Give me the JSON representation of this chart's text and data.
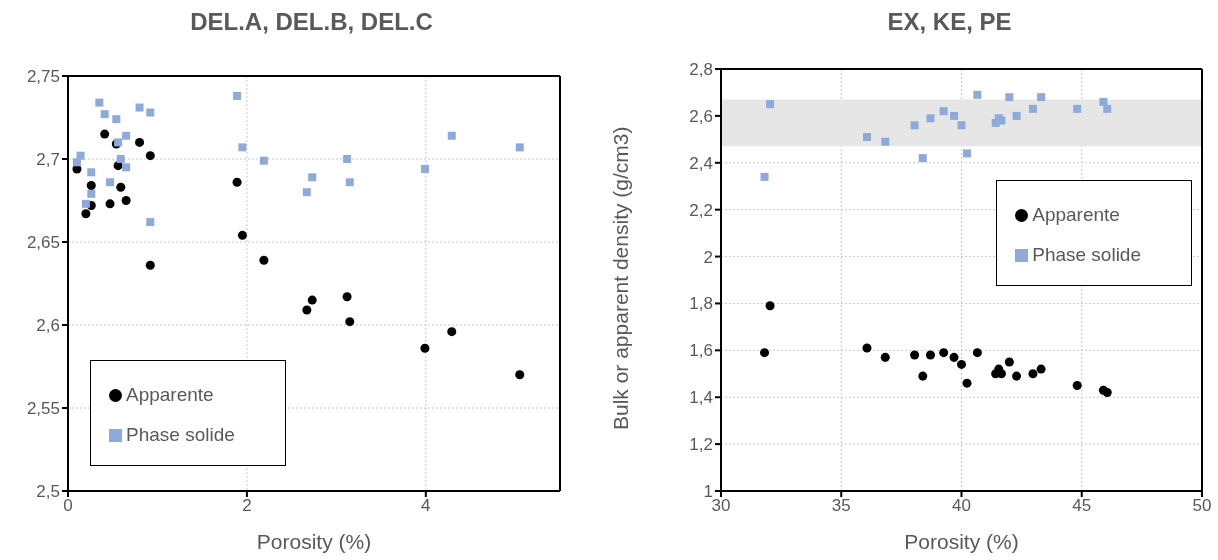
{
  "chart_data": [
    {
      "type": "scatter",
      "title": "DEL.A, DEL.B, DEL.C",
      "xlabel": "Porosity (%)",
      "xlim": [
        0,
        5.5
      ],
      "xticks": [
        0,
        2,
        4
      ],
      "ylim": [
        2.5,
        2.75
      ],
      "yticks": [
        {
          "value": 2.5,
          "label": "2,5"
        },
        {
          "value": 2.55,
          "label": "2,55"
        },
        {
          "value": 2.6,
          "label": "2,6"
        },
        {
          "value": 2.65,
          "label": "2,65"
        },
        {
          "value": 2.7,
          "label": "2,7"
        },
        {
          "value": 2.75,
          "label": "2,75"
        }
      ],
      "grid": true,
      "legend": "bottom left",
      "series": [
        {
          "name": "Apparente",
          "color": "#000000",
          "marker": "circle",
          "x": [
            0.1,
            0.2,
            0.26,
            0.26,
            0.41,
            0.47,
            0.54,
            0.56,
            0.59,
            0.65,
            0.8,
            0.92,
            0.92,
            1.89,
            1.95,
            2.19,
            2.67,
            2.73,
            3.12,
            3.15,
            3.99,
            4.29,
            5.05
          ],
          "values": [
            2.694,
            2.667,
            2.684,
            2.672,
            2.715,
            2.673,
            2.709,
            2.696,
            2.683,
            2.675,
            2.71,
            2.702,
            2.636,
            2.686,
            2.654,
            2.639,
            2.609,
            2.615,
            2.617,
            2.602,
            2.586,
            2.596,
            2.57
          ]
        },
        {
          "name": "Phase solide",
          "color": "#8eaadb",
          "marker": "square",
          "x": [
            0.1,
            0.14,
            0.2,
            0.26,
            0.26,
            0.35,
            0.41,
            0.54,
            0.47,
            0.56,
            0.59,
            0.65,
            0.65,
            0.8,
            0.92,
            0.92,
            1.89,
            1.95,
            2.19,
            2.67,
            2.73,
            3.12,
            3.15,
            3.99,
            4.29,
            5.05
          ],
          "values": [
            2.698,
            2.702,
            2.673,
            2.692,
            2.679,
            2.734,
            2.727,
            2.724,
            2.686,
            2.71,
            2.7,
            2.714,
            2.695,
            2.731,
            2.728,
            2.662,
            2.738,
            2.707,
            2.699,
            2.68,
            2.689,
            2.7,
            2.686,
            2.694,
            2.714,
            2.707
          ]
        }
      ]
    },
    {
      "type": "scatter",
      "title": "EX, KE, PE",
      "xlabel": "Porosity (%)",
      "ylabel": "Bulk or apparent density (g/cm3)",
      "xlim": [
        30,
        50
      ],
      "xticks": [
        30,
        35,
        40,
        45,
        50
      ],
      "ylim": [
        1,
        2.8
      ],
      "yticks": [
        1,
        {
          "value": 1.2,
          "label": "1,2"
        },
        {
          "value": 1.4,
          "label": "1,4"
        },
        {
          "value": 1.6,
          "label": "1,6"
        },
        {
          "value": 1.8,
          "label": "1,8"
        },
        2,
        {
          "value": 2.2,
          "label": "2,2"
        },
        {
          "value": 2.4,
          "label": "2,4"
        },
        {
          "value": 2.6,
          "label": "2,6"
        },
        {
          "value": 2.8,
          "label": "2,8"
        }
      ],
      "grid": true,
      "legend": "right",
      "bands": [
        {
          "axis": "y",
          "from": 2.47,
          "to": 2.67,
          "color": "#e6e6e6"
        }
      ],
      "series": [
        {
          "name": "Apparente",
          "color": "#000000",
          "marker": "circle",
          "x": [
            31.81,
            32.04,
            36.07,
            36.83,
            38.05,
            38.39,
            38.71,
            39.26,
            39.69,
            40.0,
            40.23,
            40.66,
            41.42,
            41.55,
            41.66,
            41.99,
            42.29,
            42.97,
            43.31,
            44.81,
            45.9,
            46.06
          ],
          "values": [
            1.59,
            1.79,
            1.61,
            1.57,
            1.58,
            1.49,
            1.58,
            1.59,
            1.57,
            1.54,
            1.46,
            1.59,
            1.5,
            1.52,
            1.5,
            1.55,
            1.49,
            1.5,
            1.52,
            1.45,
            1.43,
            1.42
          ]
        },
        {
          "name": "Phase solide",
          "color": "#8eaadb",
          "marker": "square",
          "x": [
            31.81,
            32.04,
            36.07,
            36.83,
            38.05,
            38.39,
            38.71,
            39.26,
            39.69,
            40.0,
            40.23,
            40.66,
            41.42,
            41.55,
            41.66,
            41.99,
            42.29,
            42.97,
            43.31,
            44.81,
            45.9,
            46.06
          ],
          "values": [
            2.34,
            2.65,
            2.51,
            2.49,
            2.56,
            2.42,
            2.59,
            2.62,
            2.6,
            2.56,
            2.44,
            2.69,
            2.57,
            2.59,
            2.58,
            2.68,
            2.6,
            2.63,
            2.68,
            2.63,
            2.66,
            2.63
          ]
        }
      ]
    }
  ]
}
